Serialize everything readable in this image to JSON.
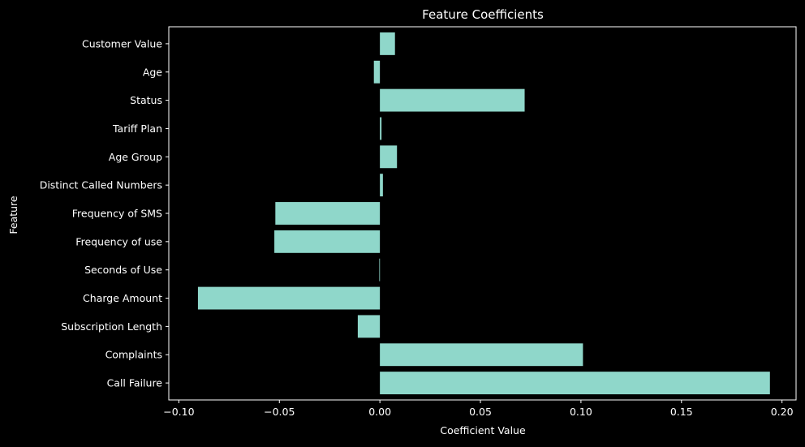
{
  "colors": {
    "background": "#000000",
    "bar": "#8fd7ca",
    "axes": "#ffffff",
    "text": "#ffffff"
  },
  "chart_data": {
    "type": "bar",
    "orientation": "horizontal",
    "title": "Feature Coefficients",
    "xlabel": "Coefficient Value",
    "ylabel": "Feature",
    "xlim": [
      -0.105,
      0.207
    ],
    "xticks": [
      -0.1,
      -0.05,
      0.0,
      0.05,
      0.1,
      0.15,
      0.2
    ],
    "xtick_labels": [
      "−0.10",
      "−0.05",
      "0.00",
      "0.05",
      "0.10",
      "0.15",
      "0.20"
    ],
    "grid": false,
    "categories": [
      "Call Failure",
      "Complaints",
      "Subscription Length",
      "Charge Amount",
      "Seconds of Use",
      "Frequency of use",
      "Frequency of SMS",
      "Distinct Called Numbers",
      "Age Group",
      "Tariff Plan",
      "Status",
      "Age",
      "Customer Value"
    ],
    "values": [
      0.194,
      0.101,
      -0.011,
      -0.0905,
      -0.0003,
      -0.0525,
      -0.052,
      0.0015,
      0.0085,
      0.0008,
      0.072,
      -0.003,
      0.0075
    ]
  }
}
